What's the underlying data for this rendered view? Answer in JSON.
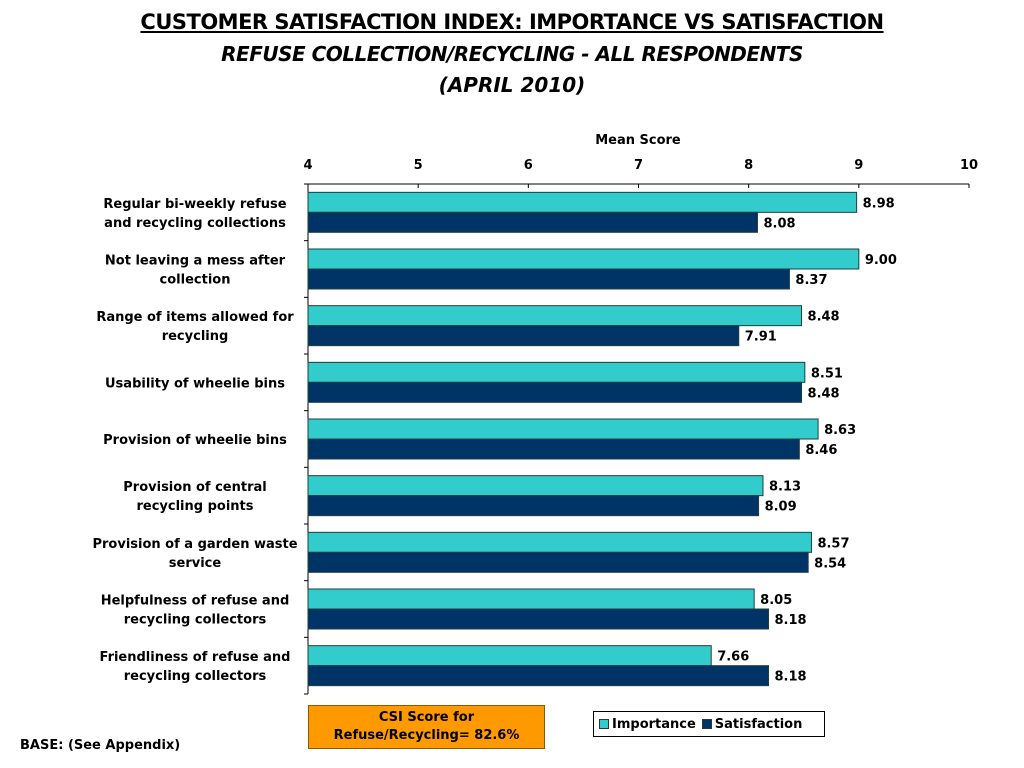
{
  "chart_data": {
    "type": "bar",
    "orientation": "horizontal",
    "title": "CUSTOMER SATISFACTION INDEX: IMPORTANCE VS SATISFACTION",
    "subtitle": "REFUSE COLLECTION/RECYCLING - ALL RESPONDENTS",
    "subtitle2": "(APRIL 2010)",
    "xlabel": "Mean Score",
    "ylabel": "",
    "xlim": [
      4,
      10
    ],
    "x_ticks": [
      "4",
      "5",
      "6",
      "7",
      "8",
      "9",
      "10"
    ],
    "grid": false,
    "legend_position": "bottom-right",
    "categories": [
      [
        "Regular bi-weekly refuse",
        "and recycling collections"
      ],
      [
        "Not leaving a mess after",
        "collection"
      ],
      [
        "Range of items allowed for",
        "recycling"
      ],
      [
        "Usability of wheelie bins"
      ],
      [
        "Provision of wheelie bins"
      ],
      [
        "Provision of central",
        "recycling points"
      ],
      [
        "Provision of a garden waste",
        "service"
      ],
      [
        "Helpfulness of refuse and",
        "recycling collectors"
      ],
      [
        "Friendliness of refuse and",
        "recycling collectors"
      ]
    ],
    "series": [
      {
        "name": "Importance",
        "color": "#33CCCC",
        "values": [
          8.98,
          9.0,
          8.48,
          8.51,
          8.63,
          8.13,
          8.57,
          8.05,
          7.66
        ],
        "labels": [
          "8.98",
          "9.00",
          "8.48",
          "8.51",
          "8.63",
          "8.13",
          "8.57",
          "8.05",
          "7.66"
        ]
      },
      {
        "name": "Satisfaction",
        "color": "#003366",
        "values": [
          8.08,
          8.37,
          7.91,
          8.48,
          8.46,
          8.09,
          8.54,
          8.18,
          8.18
        ],
        "labels": [
          "8.08",
          "8.37",
          "7.91",
          "8.48",
          "8.46",
          "8.09",
          "8.54",
          "8.18",
          "8.18"
        ]
      }
    ]
  },
  "csi_box": {
    "line1": "CSI Score for",
    "line2": "Refuse/Recycling= 82.6%",
    "color": "#FF9900"
  },
  "legend": {
    "importance": "Importance",
    "satisfaction": "Satisfaction"
  },
  "footer": {
    "base": "BASE: (See Appendix)"
  }
}
